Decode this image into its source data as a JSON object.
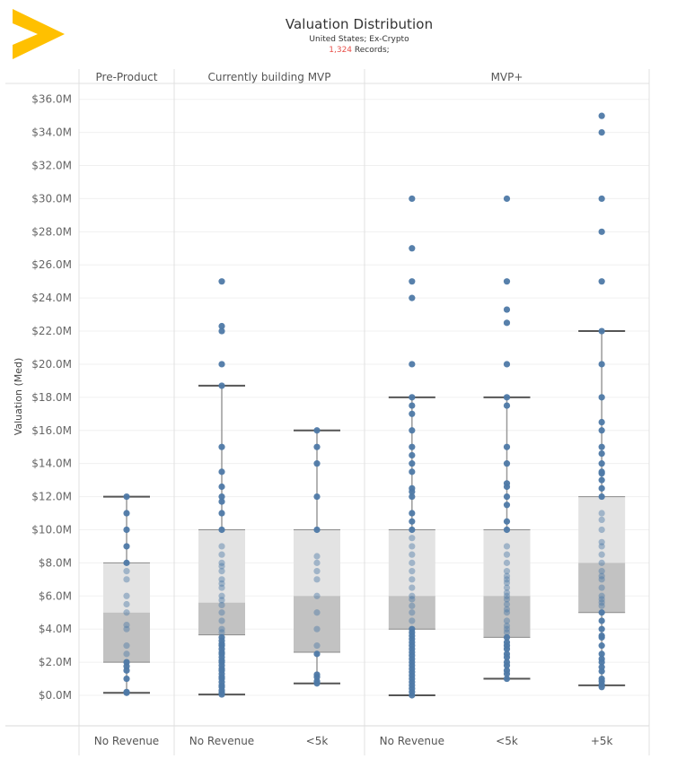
{
  "header": {
    "logo_icon": "yellow-chevron-logo",
    "logo_color": "#FFC000",
    "title": "Valuation Distribution",
    "subtitle": "United States; Ex-Crypto",
    "records_count": "1,324",
    "records_suffix": " Records;",
    "records_count_color": "#E8504A"
  },
  "chart_data": {
    "type": "boxplot",
    "title": "Valuation Distribution",
    "ylabel": "Valuation (Med)",
    "xlabel": "",
    "ylim": [
      0,
      36
    ],
    "y_unit": "$M",
    "y_ticks": [
      0,
      2,
      4,
      6,
      8,
      10,
      12,
      14,
      16,
      18,
      20,
      22,
      24,
      26,
      28,
      30,
      32,
      34,
      36
    ],
    "y_tick_labels": [
      "$0.0M",
      "$2.0M",
      "$4.0M",
      "$6.0M",
      "$8.0M",
      "$10.0M",
      "$12.0M",
      "$14.0M",
      "$16.0M",
      "$18.0M",
      "$20.0M",
      "$22.0M",
      "$24.0M",
      "$26.0M",
      "$28.0M",
      "$30.0M",
      "$32.0M",
      "$34.0M",
      "$36.0M"
    ],
    "grid": true,
    "colors": {
      "point": "#4E79A7",
      "upper_box": "#E3E3E3",
      "lower_box": "#C2C2C2",
      "whisker": "#555555"
    },
    "groups": [
      {
        "name": "Pre-Product",
        "categories": [
          {
            "label": "No Revenue",
            "whisker_low": 0.15,
            "q1": 2.0,
            "median": 5.0,
            "q3": 8.0,
            "whisker_high": 12.0,
            "points": [
              12.0,
              11.0,
              10.0,
              9.0,
              8.0,
              7.5,
              7.0,
              6.0,
              5.5,
              5.0,
              4.25,
              4.0,
              3.0,
              2.5,
              2.0,
              1.75,
              1.5,
              1.0,
              0.2,
              0.15
            ]
          }
        ]
      },
      {
        "name": "Currently building MVP",
        "categories": [
          {
            "label": "No Revenue",
            "whisker_low": 0.05,
            "q1": 3.65,
            "median": 5.6,
            "q3": 10.0,
            "whisker_high": 18.7,
            "points": [
              25.0,
              22.3,
              22.0,
              20.0,
              18.7,
              15.0,
              13.5,
              12.6,
              12.0,
              11.7,
              11.0,
              10.0,
              9.0,
              8.5,
              8.0,
              7.8,
              7.5,
              7.0,
              6.75,
              6.5,
              6.0,
              5.75,
              5.45,
              5.0,
              4.5,
              4.0,
              3.8,
              3.5,
              3.3,
              3.1,
              3.0,
              2.8,
              2.6,
              2.5,
              2.3,
              2.1,
              2.0,
              1.8,
              1.6,
              1.5,
              1.3,
              1.1,
              1.0,
              0.8,
              0.6,
              0.5,
              0.3,
              0.15,
              0.05
            ]
          },
          {
            "label": "<5k",
            "whisker_low": 0.72,
            "q1": 2.6,
            "median": 6.0,
            "q3": 10.0,
            "whisker_high": 16.0,
            "points": [
              16.0,
              15.0,
              14.0,
              12.0,
              10.0,
              8.4,
              8.0,
              7.5,
              7.0,
              6.0,
              5.0,
              4.0,
              3.0,
              2.5,
              1.25,
              1.1,
              0.85,
              0.72
            ]
          }
        ]
      },
      {
        "name": "MVP+",
        "categories": [
          {
            "label": "No Revenue",
            "whisker_low": 0.0,
            "q1": 4.0,
            "median": 6.0,
            "q3": 10.0,
            "whisker_high": 18.0,
            "points": [
              30.0,
              27.0,
              25.0,
              24.0,
              20.0,
              18.0,
              17.5,
              17.0,
              16.0,
              15.0,
              14.5,
              14.0,
              13.5,
              12.5,
              12.3,
              12.0,
              11.0,
              10.5,
              10.0,
              9.5,
              9.0,
              8.5,
              8.0,
              7.5,
              7.0,
              6.5,
              6.0,
              5.8,
              5.4,
              5.0,
              4.5,
              4.0,
              3.8,
              3.6,
              3.4,
              3.2,
              3.0,
              2.8,
              2.6,
              2.4,
              2.2,
              2.0,
              1.8,
              1.6,
              1.4,
              1.2,
              1.0,
              0.8,
              0.6,
              0.4,
              0.2,
              0.0
            ]
          },
          {
            "label": "<5k",
            "whisker_low": 1.0,
            "q1": 3.5,
            "median": 6.0,
            "q3": 10.0,
            "whisker_high": 18.0,
            "points": [
              30.0,
              25.0,
              23.3,
              22.5,
              20.0,
              18.0,
              17.5,
              15.0,
              14.0,
              12.8,
              12.6,
              12.0,
              11.5,
              10.5,
              10.0,
              9.0,
              8.5,
              8.0,
              7.5,
              7.2,
              7.0,
              6.8,
              6.5,
              6.2,
              6.0,
              5.8,
              5.5,
              5.2,
              5.0,
              4.5,
              4.2,
              4.0,
              3.8,
              3.5,
              3.2,
              3.0,
              2.8,
              2.5,
              2.3,
              2.0,
              1.8,
              1.5,
              1.3,
              1.0
            ]
          },
          {
            "label": "+5k",
            "whisker_low": 0.6,
            "q1": 5.0,
            "median": 8.0,
            "q3": 12.0,
            "whisker_high": 22.0,
            "points": [
              35.0,
              34.0,
              30.0,
              28.0,
              25.0,
              22.0,
              20.0,
              18.0,
              16.5,
              16.0,
              15.0,
              14.6,
              14.0,
              13.5,
              13.4,
              13.0,
              12.5,
              12.0,
              11.0,
              10.6,
              10.0,
              9.25,
              9.0,
              8.5,
              8.0,
              7.5,
              7.2,
              7.0,
              6.5,
              6.0,
              5.8,
              5.6,
              5.4,
              5.0,
              4.5,
              4.0,
              3.6,
              3.5,
              3.0,
              2.5,
              2.2,
              2.0,
              1.7,
              1.45,
              1.0,
              0.85,
              0.65,
              0.5
            ]
          }
        ]
      }
    ]
  }
}
